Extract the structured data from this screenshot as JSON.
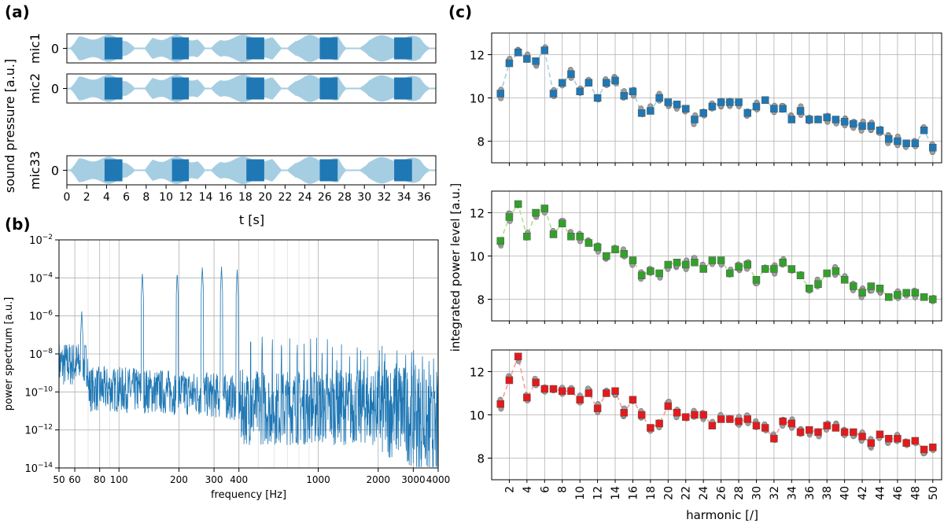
{
  "panel_labels": {
    "a": "(a)",
    "b": "(b)",
    "c": "(c)"
  },
  "colors": {
    "wave_light": "#a6cee3",
    "wave_dark": "#1f78b4",
    "spectrum": "#1f77b4",
    "grid": "#b0b0b0",
    "gray_marker": "#a0a0a0",
    "series": [
      "#1f78b4",
      "#33a02c",
      "#e31a1c"
    ],
    "series_light": [
      "#a6cee3",
      "#b2df8a",
      "#fb9a99"
    ]
  },
  "chart_data": [
    {
      "id": "a",
      "type": "line",
      "title": "",
      "xlabel": "t [s]",
      "ylabel": "sound pressure [a.u.]",
      "xlim": [
        0,
        37.2
      ],
      "xticks": [
        0,
        2,
        4,
        6,
        8,
        10,
        12,
        14,
        16,
        18,
        20,
        22,
        24,
        26,
        28,
        30,
        32,
        34,
        36
      ],
      "channels": [
        {
          "name": "mic1",
          "ytick": "0"
        },
        {
          "name": "mic2",
          "ytick": "0"
        },
        {
          "name": "mic33",
          "ytick": "0"
        }
      ],
      "tone_segments_s": [
        [
          0.4,
          6.8
        ],
        [
          7.9,
          13.9
        ],
        [
          14.6,
          21.6
        ],
        [
          22.3,
          28.1
        ],
        [
          29.6,
          36.5
        ]
      ],
      "dark_segments_s": [
        [
          3.8,
          5.6
        ],
        [
          10.6,
          12.3
        ],
        [
          18.1,
          19.9
        ],
        [
          25.5,
          27.3
        ],
        [
          33.0,
          34.8
        ]
      ]
    },
    {
      "id": "b",
      "type": "line",
      "title": "",
      "xlabel": "frequency [Hz]",
      "ylabel": "power spectrum [a.u.]",
      "xscale": "log",
      "yscale": "log",
      "xlim": [
        50,
        4000
      ],
      "ylim": [
        1e-14,
        0.01
      ],
      "xticks": [
        50,
        60,
        80,
        100,
        200,
        300,
        400,
        1000,
        2000,
        3000,
        4000
      ],
      "xticklabels": [
        "50",
        "60",
        "80",
        "100",
        "200",
        "300",
        "400",
        "1000",
        "2000",
        "3000",
        "4000"
      ],
      "yticks": [
        1e-14,
        1e-12,
        1e-10,
        1e-08,
        1e-06,
        0.0001,
        0.01
      ],
      "yticklabels": [
        "10−14",
        "10−12",
        "10−10",
        "10−8",
        "10−6",
        "10−4",
        "10−2"
      ],
      "peaks": [
        {
          "f": 65,
          "p": 2e-06
        },
        {
          "f": 131,
          "p": 0.0002
        },
        {
          "f": 196,
          "p": 0.0002
        },
        {
          "f": 262,
          "p": 0.0004
        },
        {
          "f": 327,
          "p": 0.0004
        },
        {
          "f": 392,
          "p": 0.0003
        }
      ]
    },
    {
      "id": "c",
      "type": "scatter",
      "title": "",
      "xlabel": "harmonic [/]",
      "ylabel": "integrated power level [a.u.]",
      "xticks": [
        2,
        4,
        6,
        8,
        10,
        12,
        14,
        16,
        18,
        20,
        22,
        24,
        26,
        28,
        30,
        32,
        34,
        36,
        38,
        40,
        42,
        44,
        46,
        48,
        50
      ],
      "xlim": [
        0,
        51
      ],
      "ylim": [
        7,
        13
      ],
      "yticks": [
        8,
        10,
        12
      ],
      "harmonics": [
        1,
        2,
        3,
        4,
        5,
        6,
        7,
        8,
        9,
        10,
        11,
        12,
        13,
        14,
        15,
        16,
        17,
        18,
        19,
        20,
        21,
        22,
        23,
        24,
        25,
        26,
        27,
        28,
        29,
        30,
        31,
        32,
        33,
        34,
        35,
        36,
        37,
        38,
        39,
        40,
        41,
        42,
        43,
        44,
        45,
        46,
        47,
        48,
        49,
        50
      ],
      "series": [
        {
          "name": "mic1",
          "values": [
            10.2,
            11.6,
            12.1,
            11.8,
            11.7,
            12.2,
            10.2,
            10.7,
            11.1,
            10.3,
            10.7,
            10.0,
            10.7,
            10.8,
            10.1,
            10.3,
            9.3,
            9.4,
            10.0,
            9.8,
            9.7,
            9.5,
            9.0,
            9.3,
            9.6,
            9.8,
            9.8,
            9.8,
            9.3,
            9.6,
            9.9,
            9.5,
            9.5,
            9.0,
            9.4,
            9.0,
            9.0,
            9.1,
            9.0,
            8.9,
            8.8,
            8.7,
            8.7,
            8.5,
            8.1,
            8.0,
            7.9,
            7.9,
            8.5,
            7.7
          ]
        },
        {
          "name": "mic2",
          "values": [
            10.7,
            11.8,
            12.4,
            10.9,
            12.0,
            12.2,
            11.0,
            11.5,
            10.9,
            10.9,
            10.6,
            10.4,
            10.0,
            10.3,
            10.1,
            9.8,
            9.1,
            9.3,
            9.2,
            9.6,
            9.7,
            9.6,
            9.7,
            9.4,
            9.8,
            9.8,
            9.2,
            9.5,
            9.6,
            8.9,
            9.4,
            9.4,
            9.7,
            9.4,
            9.1,
            8.5,
            8.7,
            9.2,
            9.3,
            8.9,
            8.6,
            8.3,
            8.6,
            8.5,
            8.1,
            8.2,
            8.3,
            8.3,
            8.1,
            8.0
          ]
        },
        {
          "name": "mic33",
          "values": [
            10.5,
            11.6,
            12.7,
            10.8,
            11.5,
            11.2,
            11.2,
            11.1,
            11.1,
            10.7,
            11.0,
            10.3,
            11.0,
            11.1,
            10.1,
            10.7,
            10.0,
            9.4,
            9.6,
            10.4,
            10.1,
            9.9,
            10.0,
            10.0,
            9.5,
            9.8,
            9.8,
            9.7,
            9.8,
            9.5,
            9.4,
            8.9,
            9.7,
            9.6,
            9.2,
            9.3,
            9.2,
            9.5,
            9.4,
            9.2,
            9.2,
            9.0,
            8.7,
            9.1,
            8.9,
            8.9,
            8.7,
            8.8,
            8.4,
            8.5
          ]
        }
      ]
    }
  ]
}
